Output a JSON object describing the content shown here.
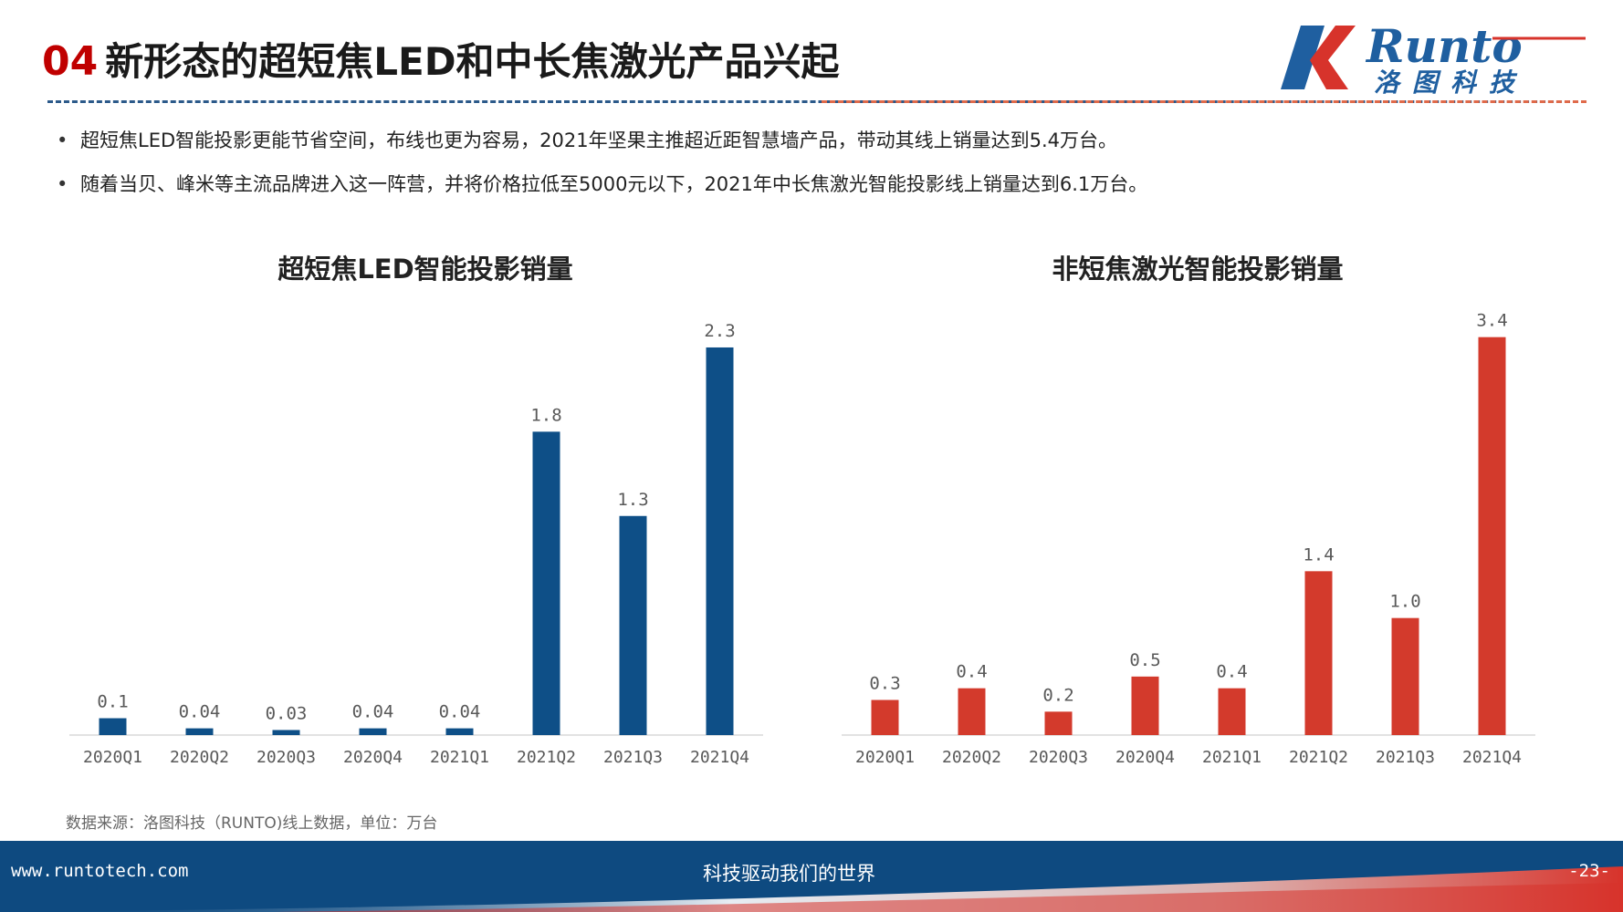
{
  "header": {
    "number": "04",
    "title": "新形态的超短焦LED和中长焦激光产品兴起"
  },
  "logo": {
    "text_en": "Runto",
    "text_cn": "洛图科技",
    "colors": {
      "blue": "#1f5fa0",
      "red": "#d7332b"
    }
  },
  "bullets": [
    "超短焦LED智能投影更能节省空间，布线也更为容易，2021年坚果主推超近距智慧墙产品，带动其线上销量达到5.4万台。",
    "随着当贝、峰米等主流品牌进入这一阵营，并将价格拉低至5000元以下，2021年中长焦激光智能投影线上销量达到6.1万台。"
  ],
  "chart_data": [
    {
      "type": "bar",
      "title": "超短焦LED智能投影销量",
      "color": "#0e4f87",
      "categories": [
        "2020Q1",
        "2020Q2",
        "2020Q3",
        "2020Q4",
        "2021Q1",
        "2021Q2",
        "2021Q3",
        "2021Q4"
      ],
      "values": [
        0.1,
        0.04,
        0.03,
        0.04,
        0.04,
        1.8,
        1.3,
        2.3
      ],
      "labels": [
        "0.1",
        "0.04",
        "0.03",
        "0.04",
        "0.04",
        "1.8",
        "1.3",
        "2.3"
      ],
      "ylim": [
        0,
        2.5
      ],
      "grid": false
    },
    {
      "type": "bar",
      "title": "非短焦激光智能投影销量",
      "color": "#d33a2c",
      "categories": [
        "2020Q1",
        "2020Q2",
        "2020Q3",
        "2020Q4",
        "2021Q1",
        "2021Q2",
        "2021Q3",
        "2021Q4"
      ],
      "values": [
        0.3,
        0.4,
        0.2,
        0.5,
        0.4,
        1.4,
        1.0,
        3.4
      ],
      "labels": [
        "0.3",
        "0.4",
        "0.2",
        "0.5",
        "0.4",
        "1.4",
        "1.0",
        "3.4"
      ],
      "ylim": [
        0,
        3.6
      ],
      "grid": false
    }
  ],
  "source": "数据来源：洛图科技（RUNTO)线上数据，单位：万台",
  "footer": {
    "url": "www.runtotech.com",
    "slogan": "科技驱动我们的世界",
    "page": "-23-"
  }
}
